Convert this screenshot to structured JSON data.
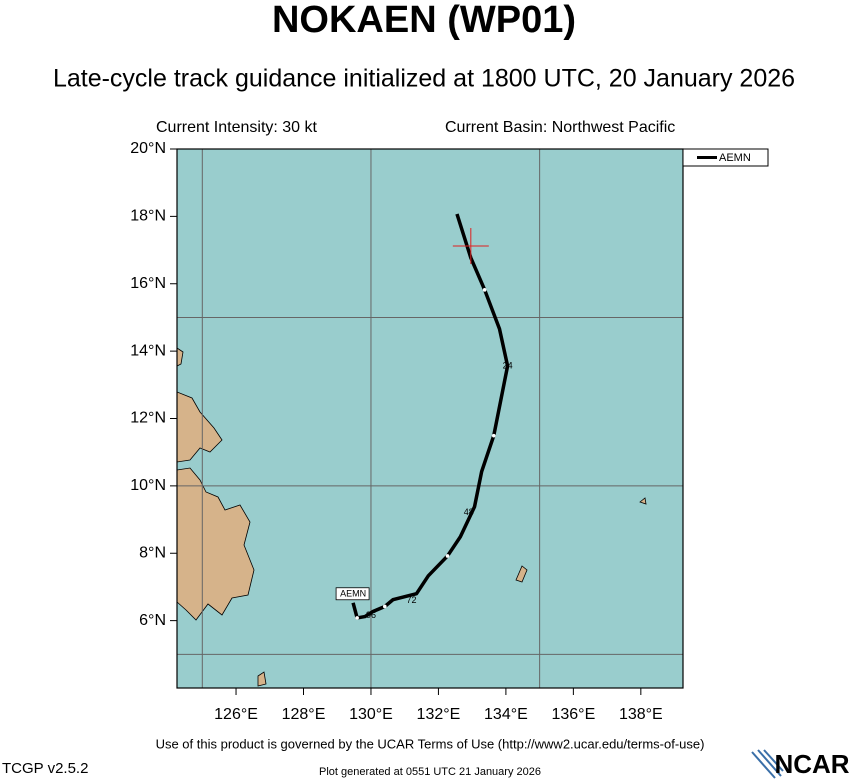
{
  "chart_data": {
    "type": "track",
    "title": "NOKAEN (WP01)",
    "subtitle": "Late-cycle track guidance initialized at 1800 UTC, 20 January 2026",
    "intensity": "Current Intensity: 30 kt",
    "basin": "Current Basin: Northwest Pacific",
    "xlim": [
      124.25,
      139.25
    ],
    "ylim": [
      4,
      20
    ],
    "xticks": [
      {
        "value": 126,
        "label": "126°E"
      },
      {
        "value": 128,
        "label": "128°E"
      },
      {
        "value": 130,
        "label": "130°E"
      },
      {
        "value": 132,
        "label": "132°E"
      },
      {
        "value": 134,
        "label": "134°E"
      },
      {
        "value": 136,
        "label": "136°E"
      },
      {
        "value": 138,
        "label": "138°E"
      }
    ],
    "yticks": [
      {
        "value": 6,
        "label": "6°N"
      },
      {
        "value": 8,
        "label": "8°N"
      },
      {
        "value": 10,
        "label": "10°N"
      },
      {
        "value": 12,
        "label": "12°N"
      },
      {
        "value": 14,
        "label": "14°N"
      },
      {
        "value": 16,
        "label": "16°N"
      },
      {
        "value": 18,
        "label": "18°N"
      },
      {
        "value": 20,
        "label": "20°N"
      }
    ],
    "xgrid": [
      125,
      130,
      135
    ],
    "ygrid": [
      5,
      10,
      15
    ],
    "current_position": {
      "lon": 132.96,
      "lat": 17.12,
      "color": "#e02020"
    },
    "series": [
      {
        "name": "AEMN",
        "color": "#000000",
        "x": [
          132.55,
          132.96,
          133.37,
          133.81,
          134.05,
          133.64,
          133.28,
          133.07,
          132.65,
          132.27,
          131.7,
          131.35,
          130.65,
          130.41,
          130.06,
          129.82,
          129.59,
          129.47
        ],
        "values": [
          18.07,
          16.77,
          15.82,
          14.66,
          13.56,
          11.49,
          10.42,
          9.38,
          8.49,
          7.92,
          7.33,
          6.8,
          6.62,
          6.42,
          6.27,
          6.12,
          6.08,
          6.53
        ],
        "interval_marks": [
          2,
          5,
          9,
          13,
          16
        ]
      }
    ],
    "hour_labels": [
      {
        "label": "24",
        "lon": 134.05,
        "lat": 13.56
      },
      {
        "label": "48",
        "lon": 132.9,
        "lat": 9.2
      },
      {
        "label": "72",
        "lon": 131.2,
        "lat": 6.6
      },
      {
        "label": "96",
        "lon": 130.0,
        "lat": 6.15
      }
    ],
    "footer": "Use of this product is governed by the UCAR Terms of Use (http://www2.ucar.edu/terms-of-use)",
    "version": "TCGP v2.5.2",
    "generated": "Plot generated at 0551 UTC   21 January 2026",
    "logo": "NCAR"
  }
}
